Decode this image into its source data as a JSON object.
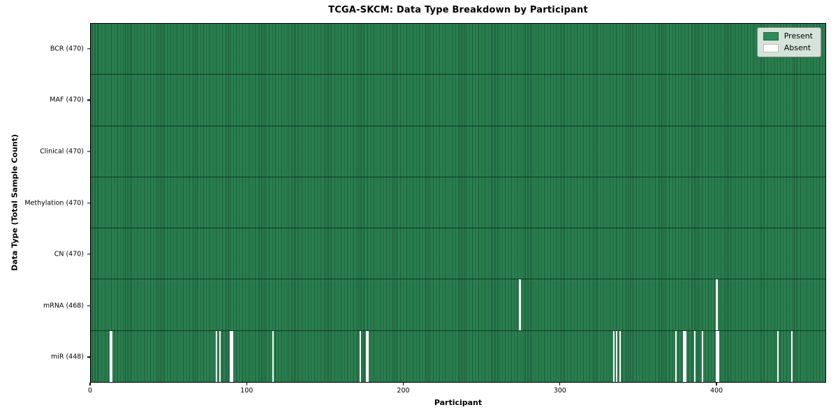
{
  "figure": {
    "title": "TCGA-SKCM: Data Type Breakdown by Participant",
    "xlabel": "Participant",
    "ylabel": "Data Type (Total Sample Count)"
  },
  "legend": {
    "items": [
      {
        "label": "Present",
        "color": "#2e8b57"
      },
      {
        "label": "Absent",
        "color": "#ffffff"
      }
    ]
  },
  "chart_data": {
    "type": "heatmap",
    "title": "TCGA-SKCM: Data Type Breakdown by Participant",
    "xlabel": "Participant",
    "ylabel": "Data Type (Total Sample Count)",
    "n_participants": 470,
    "xlim": [
      0,
      470
    ],
    "x_ticks": [
      0,
      100,
      200,
      300,
      400
    ],
    "grid": false,
    "legend_position": "upper right",
    "colors": {
      "present": "#2e8b57",
      "absent": "#ffffff",
      "cell_edge": "rgba(10,35,22,0.55)",
      "row_separator": "rgba(5,25,15,0.7)"
    },
    "rows": [
      {
        "name": "BCR",
        "label": "BCR (470)",
        "present_count": 470,
        "absent_indices": []
      },
      {
        "name": "MAF",
        "label": "MAF (470)",
        "present_count": 470,
        "absent_indices": []
      },
      {
        "name": "Clinical",
        "label": "Clinical (470)",
        "present_count": 470,
        "absent_indices": []
      },
      {
        "name": "Methylation",
        "label": "Methylation (470)",
        "present_count": 470,
        "absent_indices": []
      },
      {
        "name": "CN",
        "label": "CN (470)",
        "present_count": 470,
        "absent_indices": []
      },
      {
        "name": "mRNA",
        "label": "mRNA (468)",
        "present_count": 468,
        "absent_indices": [
          274,
          400
        ]
      },
      {
        "name": "miR",
        "label": "miR (448)",
        "present_count": 448,
        "absent_indices": [
          12,
          13,
          80,
          82,
          89,
          90,
          116,
          172,
          176,
          177,
          334,
          336,
          338,
          374,
          379,
          380,
          386,
          391,
          400,
          401,
          439,
          448
        ]
      }
    ]
  }
}
